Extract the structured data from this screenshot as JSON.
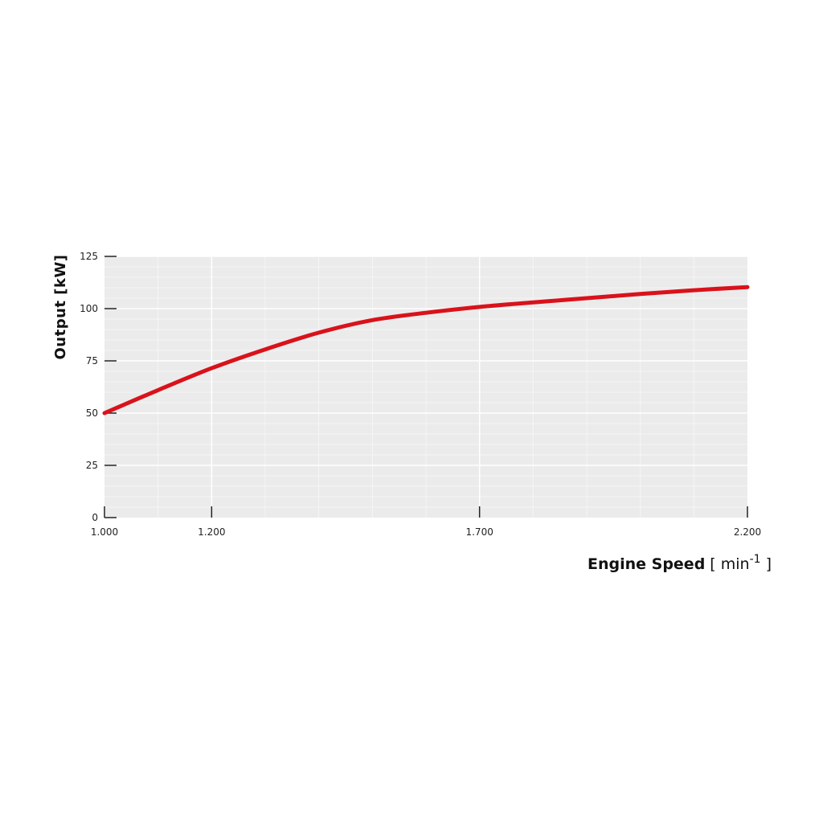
{
  "chart_data": {
    "type": "line",
    "title": "",
    "xlabel": "Engine Speed",
    "xlabel_unit_prefix": "[ min",
    "xlabel_unit_exp": "-1",
    "xlabel_unit_suffix": " ]",
    "ylabel": "Output [kW]",
    "xlim": [
      1000,
      2200
    ],
    "ylim": [
      0,
      125
    ],
    "x_ticks": [
      1000,
      1200,
      1700,
      2200
    ],
    "x_tick_labels": [
      "1.000",
      "1.200",
      "1.700",
      "2.200"
    ],
    "y_ticks": [
      0,
      25,
      50,
      75,
      100,
      125
    ],
    "y_tick_labels": [
      "0",
      "25",
      "50",
      "75",
      "100",
      "125"
    ],
    "grid": true,
    "background_color": "#ebebeb",
    "line_color": "#d9121b",
    "series": [
      {
        "x": [
          1000,
          1100,
          1200,
          1300,
          1400,
          1500,
          1600,
          1700,
          1800,
          1900,
          2000,
          2100,
          2200
        ],
        "y": [
          50,
          61,
          71.5,
          80.5,
          88.5,
          94.5,
          98,
          100.8,
          103,
          105,
          107,
          108.8,
          110.3
        ]
      }
    ]
  }
}
